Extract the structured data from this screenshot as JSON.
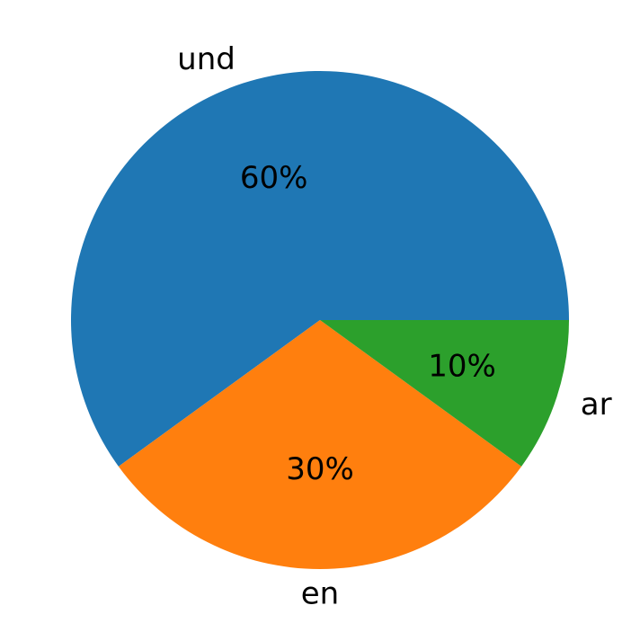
{
  "chart_data": {
    "type": "pie",
    "start_angle_deg": 0,
    "direction": "counterclockwise",
    "slices": [
      {
        "label": "und",
        "value": 60,
        "pct_label": "60%",
        "color": "#1f77b4"
      },
      {
        "label": "en",
        "value": 30,
        "pct_label": "30%",
        "color": "#ff7f0e"
      },
      {
        "label": "ar",
        "value": 10,
        "pct_label": "10%",
        "color": "#2ca02c"
      }
    ]
  }
}
